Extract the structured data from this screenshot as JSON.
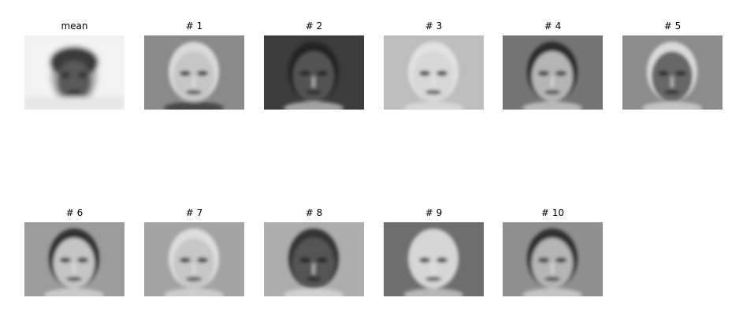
{
  "figure": {
    "panels": [
      {
        "title": "mean",
        "kind": "mean",
        "background": "#f1f1f1"
      },
      {
        "title": "# 1",
        "kind": "eigen",
        "background": "#8a8a8a"
      },
      {
        "title": "# 2",
        "kind": "eigen",
        "background": "#3c3c3c"
      },
      {
        "title": "# 3",
        "kind": "eigen",
        "background": "#bdbdbd"
      },
      {
        "title": "# 4",
        "kind": "eigen",
        "background": "#747474"
      },
      {
        "title": "# 5",
        "kind": "eigen",
        "background": "#8c8c8c"
      },
      {
        "title": "# 6",
        "kind": "eigen",
        "background": "#9c9c9c"
      },
      {
        "title": "# 7",
        "kind": "eigen",
        "background": "#a3a3a3"
      },
      {
        "title": "# 8",
        "kind": "eigen",
        "background": "#adadad"
      },
      {
        "title": "# 9",
        "kind": "eigen",
        "background": "#6e6e6e"
      },
      {
        "title": "# 10",
        "kind": "eigen",
        "background": "#8f8f8f"
      }
    ]
  }
}
